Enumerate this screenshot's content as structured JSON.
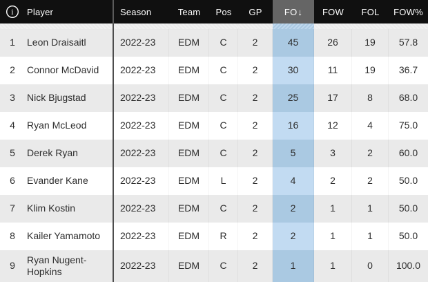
{
  "table": {
    "columns": [
      {
        "key": "player",
        "label": "Player",
        "sorted": false
      },
      {
        "key": "season",
        "label": "Season",
        "sorted": false
      },
      {
        "key": "team",
        "label": "Team",
        "sorted": false
      },
      {
        "key": "pos",
        "label": "Pos",
        "sorted": false
      },
      {
        "key": "gp",
        "label": "GP",
        "sorted": false
      },
      {
        "key": "fo",
        "label": "FO",
        "sorted": true,
        "sort_arrow": "↓"
      },
      {
        "key": "fow",
        "label": "FOW",
        "sorted": false
      },
      {
        "key": "fol",
        "label": "FOL",
        "sorted": false
      },
      {
        "key": "fow_pct",
        "label": "FOW%",
        "sorted": false
      }
    ],
    "rows": [
      {
        "rank": "1",
        "player": "Leon Draisaitl",
        "season": "2022-23",
        "team": "EDM",
        "pos": "C",
        "gp": "2",
        "fo": "45",
        "fow": "26",
        "fol": "19",
        "fow_pct": "57.8"
      },
      {
        "rank": "2",
        "player": "Connor McDavid",
        "season": "2022-23",
        "team": "EDM",
        "pos": "C",
        "gp": "2",
        "fo": "30",
        "fow": "11",
        "fol": "19",
        "fow_pct": "36.7"
      },
      {
        "rank": "3",
        "player": "Nick Bjugstad",
        "season": "2022-23",
        "team": "EDM",
        "pos": "C",
        "gp": "2",
        "fo": "25",
        "fow": "17",
        "fol": "8",
        "fow_pct": "68.0"
      },
      {
        "rank": "4",
        "player": "Ryan McLeod",
        "season": "2022-23",
        "team": "EDM",
        "pos": "C",
        "gp": "2",
        "fo": "16",
        "fow": "12",
        "fol": "4",
        "fow_pct": "75.0"
      },
      {
        "rank": "5",
        "player": "Derek Ryan",
        "season": "2022-23",
        "team": "EDM",
        "pos": "C",
        "gp": "2",
        "fo": "5",
        "fow": "3",
        "fol": "2",
        "fow_pct": "60.0"
      },
      {
        "rank": "6",
        "player": "Evander Kane",
        "season": "2022-23",
        "team": "EDM",
        "pos": "L",
        "gp": "2",
        "fo": "4",
        "fow": "2",
        "fol": "2",
        "fow_pct": "50.0"
      },
      {
        "rank": "7",
        "player": "Klim Kostin",
        "season": "2022-23",
        "team": "EDM",
        "pos": "C",
        "gp": "2",
        "fo": "2",
        "fow": "1",
        "fol": "1",
        "fow_pct": "50.0"
      },
      {
        "rank": "8",
        "player": "Kailer Yamamoto",
        "season": "2022-23",
        "team": "EDM",
        "pos": "R",
        "gp": "2",
        "fo": "2",
        "fow": "1",
        "fol": "1",
        "fow_pct": "50.0"
      },
      {
        "rank": "9",
        "player": "Ryan Nugent-Hopkins",
        "season": "2022-23",
        "team": "EDM",
        "pos": "C",
        "gp": "2",
        "fo": "1",
        "fow": "1",
        "fol": "0",
        "fow_pct": "100.0"
      }
    ]
  },
  "icons": {
    "info_glyph": "i",
    "sort_desc": "↓"
  },
  "colors": {
    "header_bg": "#101010",
    "header_text": "#ffffff",
    "sorted_header_bg": "#656565",
    "row_bg": "#ffffff",
    "row_alt_bg": "#eaeaea",
    "sorted_cell_on_white": "#c2dbf2",
    "sorted_cell_on_alt": "#aac9e2",
    "player_divider": "#4d4d4d"
  }
}
